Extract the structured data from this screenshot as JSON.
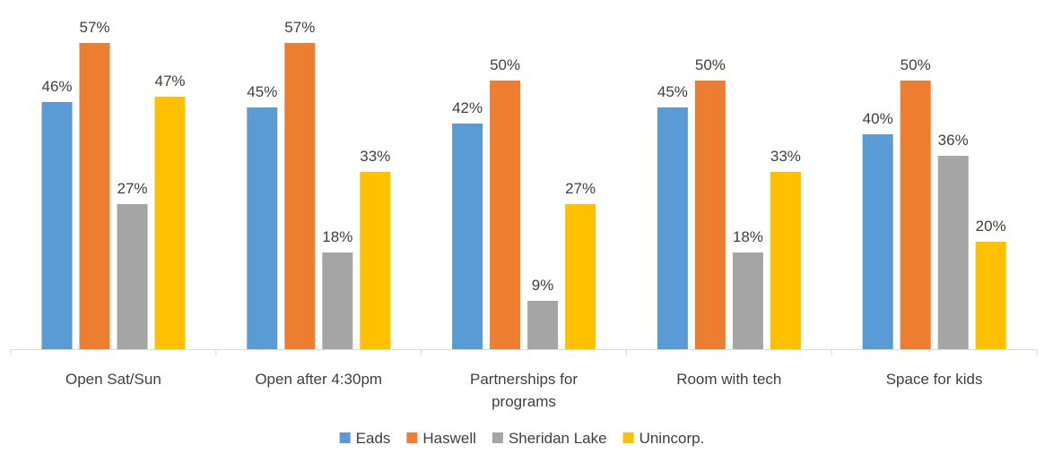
{
  "chart_data": {
    "type": "bar",
    "categories": [
      [
        "Open Sat/Sun"
      ],
      [
        "Open after 4:30pm"
      ],
      [
        "Partnerships for",
        "programs"
      ],
      [
        "Room with tech"
      ],
      [
        "Space for kids"
      ]
    ],
    "series": [
      {
        "name": "Eads",
        "values": [
          46,
          45,
          42,
          45,
          40
        ],
        "color": "#5B9BD5"
      },
      {
        "name": "Haswell",
        "values": [
          57,
          57,
          50,
          50,
          50
        ],
        "color": "#ED7D31"
      },
      {
        "name": "Sheridan Lake",
        "values": [
          27,
          18,
          9,
          18,
          36
        ],
        "color": "#A5A5A5"
      },
      {
        "name": "Unincorp.",
        "values": [
          47,
          33,
          27,
          33,
          20
        ],
        "color": "#FFC000"
      }
    ],
    "value_suffix": "%",
    "ylim": [
      0,
      57
    ],
    "grid": false,
    "legend_position": "bottom",
    "axis_color": "#D9D9D9"
  }
}
